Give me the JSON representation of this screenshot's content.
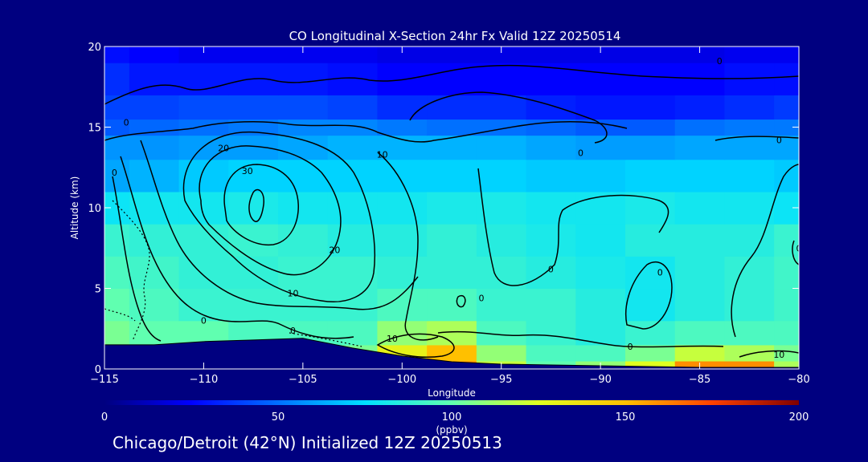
{
  "chart_data": {
    "type": "heatmap",
    "title": "CO Longitudinal X-Section 24hr  Fx Valid 12Z 20250514",
    "xlabel": "Longitude",
    "ylabel": "Altitude (km)",
    "xlim": [
      -115,
      -80
    ],
    "ylim": [
      0,
      20
    ],
    "x_ticks": [
      -115,
      -110,
      -105,
      -100,
      -95,
      -90,
      -85,
      -80
    ],
    "y_ticks": [
      0,
      5,
      10,
      15,
      20
    ],
    "x_tick_labels": [
      "−115",
      "−110",
      "−105",
      "−100",
      "−95",
      "−90",
      "−85",
      "−80"
    ],
    "y_tick_labels": [
      "0",
      "5",
      "10",
      "15",
      "20"
    ],
    "colorbar": {
      "label": "(ppbv)",
      "min": 0,
      "max": 200,
      "ticks": [
        0,
        50,
        100,
        150,
        200
      ],
      "tick_labels": [
        "0",
        "50",
        "100",
        "150",
        "200"
      ]
    },
    "caption": "Chicago/Detroit (42°N) Initialized 12Z 20250513",
    "x": [
      -115,
      -112.5,
      -110,
      -107.5,
      -105,
      -102.5,
      -100,
      -97.5,
      -95,
      -92.5,
      -90,
      -87.5,
      -85,
      -82.5,
      -80
    ],
    "y": [
      0,
      1,
      2,
      4,
      6,
      8,
      10,
      12,
      14,
      15,
      16,
      18,
      20
    ],
    "values": [
      [
        115,
        115,
        110,
        110,
        105,
        110,
        140,
        160,
        120,
        100,
        110,
        125,
        160,
        160,
        115
      ],
      [
        110,
        110,
        105,
        100,
        100,
        105,
        130,
        150,
        110,
        95,
        95,
        105,
        120,
        115,
        105
      ],
      [
        105,
        100,
        100,
        95,
        95,
        95,
        110,
        115,
        95,
        90,
        85,
        90,
        95,
        95,
        95
      ],
      [
        100,
        95,
        90,
        90,
        90,
        90,
        95,
        95,
        90,
        90,
        85,
        80,
        85,
        88,
        92
      ],
      [
        95,
        92,
        88,
        88,
        90,
        90,
        88,
        88,
        88,
        85,
        82,
        80,
        85,
        88,
        92
      ],
      [
        90,
        88,
        88,
        90,
        88,
        85,
        85,
        88,
        85,
        82,
        80,
        85,
        85,
        85,
        90
      ],
      [
        78,
        80,
        80,
        82,
        80,
        80,
        80,
        82,
        82,
        80,
        80,
        82,
        80,
        80,
        78
      ],
      [
        62,
        65,
        70,
        72,
        72,
        72,
        72,
        72,
        72,
        70,
        70,
        72,
        72,
        72,
        70
      ],
      [
        58,
        58,
        60,
        60,
        62,
        65,
        65,
        65,
        65,
        62,
        60,
        60,
        62,
        62,
        62
      ],
      [
        45,
        48,
        50,
        52,
        55,
        55,
        52,
        50,
        50,
        48,
        45,
        45,
        50,
        52,
        52
      ],
      [
        40,
        40,
        42,
        42,
        42,
        40,
        35,
        35,
        35,
        32,
        30,
        30,
        32,
        35,
        38
      ],
      [
        35,
        30,
        30,
        30,
        30,
        28,
        25,
        25,
        25,
        25,
        25,
        25,
        25,
        28,
        28
      ],
      [
        28,
        25,
        22,
        22,
        22,
        22,
        20,
        20,
        20,
        20,
        20,
        20,
        20,
        22,
        22
      ]
    ],
    "terrain_km": [
      1.5,
      1.5,
      1.7,
      1.8,
      1.9,
      1.3,
      0.8,
      0.45,
      0.3,
      0.25,
      0.2,
      0.15,
      0.1,
      0.1,
      0.1
    ],
    "contour_labels": [
      {
        "text": "0",
        "lon": -114.5,
        "alt": 12.0
      },
      {
        "text": "0",
        "lon": -113.9,
        "alt": 15.1
      },
      {
        "text": "20",
        "lon": -109.0,
        "alt": 13.5
      },
      {
        "text": "30",
        "lon": -107.8,
        "alt": 12.1
      },
      {
        "text": "10",
        "lon": -101.0,
        "alt": 13.1
      },
      {
        "text": "20",
        "lon": -103.4,
        "alt": 7.2
      },
      {
        "text": "10",
        "lon": -105.5,
        "alt": 4.5
      },
      {
        "text": "0",
        "lon": -110.0,
        "alt": 2.8
      },
      {
        "text": "0",
        "lon": -105.5,
        "alt": 2.2
      },
      {
        "text": "10",
        "lon": -100.5,
        "alt": 1.7
      },
      {
        "text": "0",
        "lon": -96.0,
        "alt": 4.2
      },
      {
        "text": "0",
        "lon": -92.5,
        "alt": 6.0
      },
      {
        "text": "0",
        "lon": -91.0,
        "alt": 13.2
      },
      {
        "text": "0",
        "lon": -87.0,
        "alt": 5.8
      },
      {
        "text": "0",
        "lon": -88.5,
        "alt": 1.2
      },
      {
        "text": "0",
        "lon": -81.0,
        "alt": 14.0
      },
      {
        "text": "10",
        "lon": -81.0,
        "alt": 0.7
      },
      {
        "text": "0",
        "lon": -84.0,
        "alt": 18.9
      },
      {
        "text": "0",
        "lon": -80.0,
        "alt": 7.3
      }
    ]
  }
}
